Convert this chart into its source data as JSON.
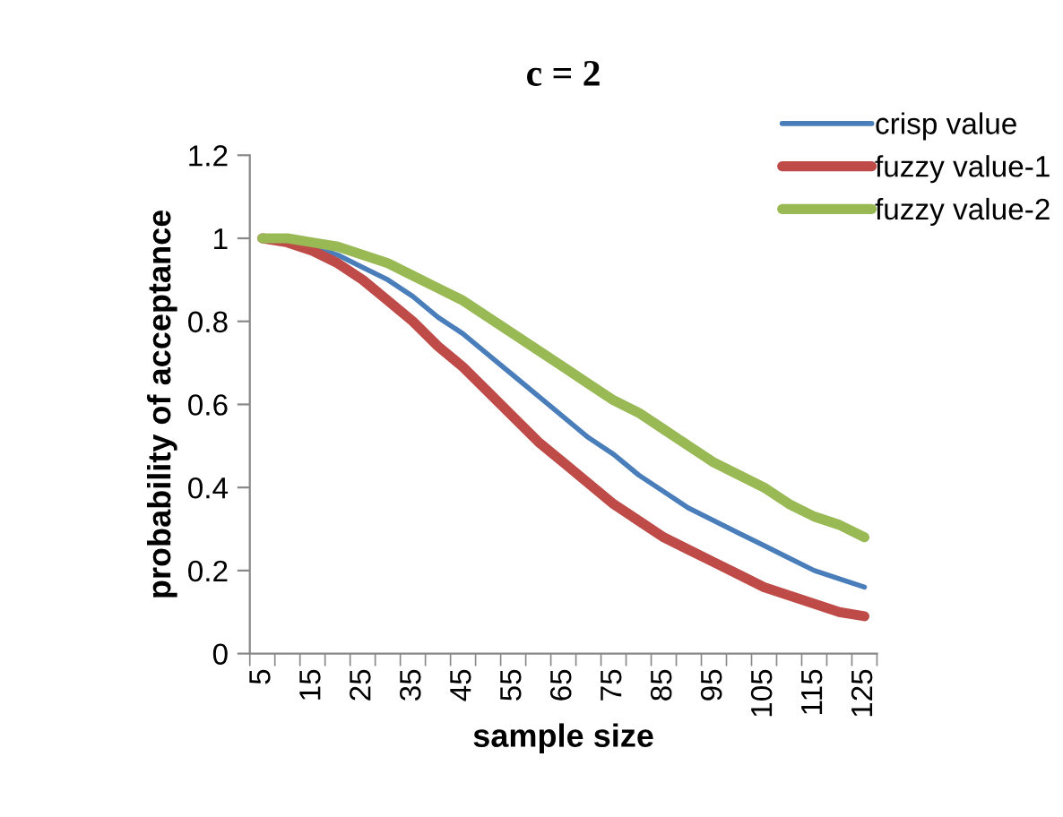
{
  "chart_data": {
    "type": "line",
    "title": "c = 2",
    "xlabel": "sample size",
    "ylabel": "probability of acceptance",
    "categories": [
      "5",
      null,
      "15",
      null,
      "25",
      null,
      "35",
      null,
      "45",
      null,
      "55",
      null,
      "65",
      null,
      "75",
      null,
      "85",
      null,
      "95",
      null,
      "105",
      null,
      "115",
      null,
      "125"
    ],
    "series": [
      {
        "name": "crisp value",
        "color": "#4a7ebb",
        "values": [
          null,
          null,
          0.98,
          0.96,
          0.93,
          0.9,
          0.86,
          0.81,
          0.77,
          0.72,
          0.67,
          0.62,
          0.57,
          0.52,
          0.48,
          0.43,
          0.39,
          0.35,
          0.32,
          0.29,
          0.26,
          0.23,
          0.2,
          0.18,
          0.16
        ]
      },
      {
        "name": "fuzzy value-1",
        "color": "#be4b48",
        "values": [
          1.0,
          0.99,
          0.97,
          0.94,
          0.9,
          0.85,
          0.8,
          0.74,
          0.69,
          0.63,
          0.57,
          0.51,
          0.46,
          0.41,
          0.36,
          0.32,
          0.28,
          0.25,
          0.22,
          0.19,
          0.16,
          0.14,
          0.12,
          0.1,
          0.09
        ]
      },
      {
        "name": "fuzzy value-2",
        "color": "#98b954",
        "values": [
          1.0,
          1.0,
          0.99,
          0.98,
          0.96,
          0.94,
          0.91,
          0.88,
          0.85,
          0.81,
          0.77,
          0.73,
          0.69,
          0.65,
          0.61,
          0.58,
          0.54,
          0.5,
          0.46,
          0.43,
          0.4,
          0.36,
          0.33,
          0.31,
          0.28
        ]
      }
    ],
    "ylim": [
      0,
      1.2
    ],
    "yticks": [
      0,
      0.2,
      0.4,
      0.6,
      0.8,
      1,
      1.2
    ],
    "grid": false,
    "legend": "top right",
    "marker": "none",
    "line_style": "solid"
  }
}
